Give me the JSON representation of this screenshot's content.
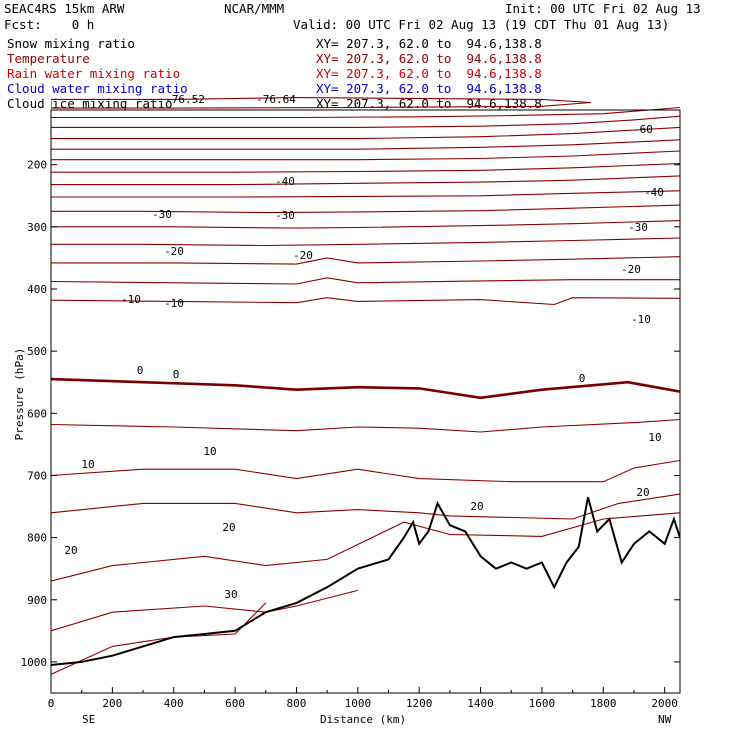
{
  "header": {
    "model": "SEAC4RS 15km ARW",
    "center": "NCAR/MMM",
    "init": "Init: 00 UTC Fri 02 Aug 13",
    "fcst": "Fcst:    0 h",
    "valid": "Valid: 00 UTC Fri 02 Aug 13 (19 CDT Thu 01 Aug 13)"
  },
  "fields": [
    {
      "name": "Snow mixing ratio",
      "color": "#000000",
      "xy": "XY= 207.3, 62.0 to  94.6,138.8"
    },
    {
      "name": "Temperature",
      "color": "#8b0000",
      "xy": "XY= 207.3, 62.0 to  94.6,138.8"
    },
    {
      "name": "Rain water mixing ratio",
      "color": "#cc0000",
      "xy": "XY= 207.3, 62.0 to  94.6,138.8"
    },
    {
      "name": "Cloud water mixing ratio",
      "color": "#0000cc",
      "xy": "XY= 207.3, 62.0 to  94.6,138.8"
    },
    {
      "name": "Cloud ice mixing ratio",
      "color": "#000000",
      "xy": "XY= 207.3, 62.0 to  94.6,138.8"
    }
  ],
  "axes": {
    "ylabel": "Pressure (hPa)",
    "xlabel": "Distance (km)",
    "left_end": "SE",
    "right_end": "NW"
  },
  "chart_data": {
    "type": "line",
    "title": "Temperature",
    "xlabel": "Distance (km)",
    "ylabel": "Pressure (hPa)",
    "xlim": [
      0,
      2050
    ],
    "ylim": [
      1050,
      112
    ],
    "x_ticks": [
      0,
      200,
      400,
      600,
      800,
      1000,
      1200,
      1400,
      1600,
      1800,
      2000
    ],
    "y_ticks": [
      200,
      300,
      400,
      500,
      600,
      700,
      800,
      900,
      1000
    ],
    "colors": {
      "contour": "#8b0000",
      "zero": "#7a0000",
      "terrain": "#000000"
    },
    "contours": [
      {
        "level": -76.52,
        "label": "-76.52",
        "points": [
          [
            0,
            95
          ],
          [
            400,
            95
          ],
          [
            800,
            92
          ],
          [
            1600,
            95
          ],
          [
            1760,
            100
          ],
          [
            1600,
            106
          ],
          [
            1000,
            108
          ],
          [
            400,
            109
          ],
          [
            0,
            109
          ]
        ]
      },
      {
        "level": -76.64,
        "label": "-76.64",
        "points": []
      },
      {
        "level": -70,
        "label": "",
        "points": [
          [
            0,
            124
          ],
          [
            400,
            124
          ],
          [
            800,
            124
          ],
          [
            1200,
            123
          ],
          [
            1500,
            121
          ],
          [
            1800,
            118
          ],
          [
            2050,
            108
          ]
        ]
      },
      {
        "level": -65,
        "label": "",
        "points": [
          [
            0,
            140
          ],
          [
            600,
            140
          ],
          [
            1000,
            140
          ],
          [
            1400,
            138
          ],
          [
            1700,
            134
          ],
          [
            1900,
            128
          ],
          [
            2050,
            122
          ]
        ]
      },
      {
        "level": -60,
        "label": "-60",
        "points": [
          [
            0,
            158
          ],
          [
            600,
            158
          ],
          [
            1000,
            158
          ],
          [
            1400,
            155
          ],
          [
            1700,
            150
          ],
          [
            2050,
            140
          ]
        ]
      },
      {
        "level": -55,
        "label": "",
        "points": [
          [
            0,
            175
          ],
          [
            600,
            175
          ],
          [
            1000,
            175
          ],
          [
            1400,
            172
          ],
          [
            1700,
            168
          ],
          [
            2050,
            160
          ]
        ]
      },
      {
        "level": -50,
        "label": "",
        "points": [
          [
            0,
            192
          ],
          [
            600,
            192
          ],
          [
            1000,
            192
          ],
          [
            1400,
            190
          ],
          [
            1700,
            186
          ],
          [
            2050,
            178
          ]
        ]
      },
      {
        "level": -45,
        "label": "",
        "points": [
          [
            0,
            212
          ],
          [
            600,
            212
          ],
          [
            1000,
            211
          ],
          [
            1400,
            209
          ],
          [
            1700,
            205
          ],
          [
            2050,
            198
          ]
        ]
      },
      {
        "level": -40,
        "label": "-40",
        "points": [
          [
            0,
            232
          ],
          [
            600,
            232
          ],
          [
            1000,
            230
          ],
          [
            1400,
            228
          ],
          [
            1700,
            225
          ],
          [
            2050,
            218
          ]
        ]
      },
      {
        "level": -35,
        "label": "",
        "points": [
          [
            0,
            252
          ],
          [
            600,
            252
          ],
          [
            1000,
            251
          ],
          [
            1400,
            250
          ],
          [
            1700,
            246
          ],
          [
            2050,
            242
          ]
        ]
      },
      {
        "level": -30,
        "label": "-30",
        "points": [
          [
            0,
            275
          ],
          [
            300,
            275
          ],
          [
            700,
            277
          ],
          [
            1000,
            276
          ],
          [
            1400,
            274
          ],
          [
            1700,
            270
          ],
          [
            2050,
            265
          ]
        ]
      },
      {
        "level": -25,
        "label": "",
        "points": [
          [
            0,
            300
          ],
          [
            400,
            300
          ],
          [
            800,
            302
          ],
          [
            1000,
            301
          ],
          [
            1400,
            298
          ],
          [
            1700,
            295
          ],
          [
            2050,
            290
          ]
        ]
      },
      {
        "level": -20,
        "label": "-20",
        "points": [
          [
            0,
            328
          ],
          [
            300,
            328
          ],
          [
            700,
            330
          ],
          [
            1000,
            328
          ],
          [
            1400,
            325
          ],
          [
            1700,
            322
          ],
          [
            2050,
            318
          ]
        ]
      },
      {
        "level": -15,
        "label": "",
        "points": [
          [
            0,
            358
          ],
          [
            400,
            358
          ],
          [
            800,
            360
          ],
          [
            900,
            350
          ],
          [
            1000,
            358
          ],
          [
            1400,
            355
          ],
          [
            1700,
            352
          ],
          [
            2050,
            348
          ]
        ]
      },
      {
        "level": -10,
        "label": "-10",
        "points": [
          [
            0,
            388
          ],
          [
            400,
            390
          ],
          [
            800,
            392
          ],
          [
            900,
            382
          ],
          [
            1000,
            390
          ],
          [
            1400,
            387
          ],
          [
            1700,
            385
          ],
          [
            2050,
            385
          ]
        ]
      },
      {
        "level": -5,
        "label": "",
        "points": [
          [
            0,
            418
          ],
          [
            400,
            420
          ],
          [
            800,
            422
          ],
          [
            900,
            414
          ],
          [
            1000,
            420
          ],
          [
            1400,
            417
          ],
          [
            1640,
            425
          ],
          [
            1700,
            414
          ],
          [
            2050,
            415
          ]
        ]
      },
      {
        "level": 0,
        "label": "0",
        "points": [
          [
            0,
            545
          ],
          [
            300,
            550
          ],
          [
            600,
            555
          ],
          [
            800,
            562
          ],
          [
            1000,
            558
          ],
          [
            1200,
            560
          ],
          [
            1400,
            575
          ],
          [
            1600,
            562
          ],
          [
            1880,
            550
          ],
          [
            2050,
            565
          ]
        ]
      },
      {
        "level": 5,
        "label": "",
        "points": [
          [
            0,
            618
          ],
          [
            400,
            622
          ],
          [
            800,
            628
          ],
          [
            1000,
            622
          ],
          [
            1200,
            624
          ],
          [
            1400,
            630
          ],
          [
            1600,
            622
          ],
          [
            1900,
            615
          ],
          [
            2050,
            610
          ]
        ]
      },
      {
        "level": 10,
        "label": "10",
        "points": [
          [
            0,
            700
          ],
          [
            300,
            690
          ],
          [
            600,
            690
          ],
          [
            800,
            705
          ],
          [
            1000,
            690
          ],
          [
            1200,
            705
          ],
          [
            1500,
            710
          ],
          [
            1800,
            710
          ],
          [
            1900,
            688
          ],
          [
            2050,
            676
          ]
        ]
      },
      {
        "level": 15,
        "label": "",
        "points": [
          [
            0,
            760
          ],
          [
            300,
            745
          ],
          [
            600,
            745
          ],
          [
            800,
            760
          ],
          [
            1000,
            755
          ],
          [
            1200,
            760
          ],
          [
            1300,
            765
          ],
          [
            1700,
            770
          ],
          [
            1850,
            745
          ],
          [
            2050,
            730
          ]
        ]
      },
      {
        "level": 20,
        "label": "20",
        "points": [
          [
            0,
            870
          ],
          [
            200,
            845
          ],
          [
            500,
            830
          ],
          [
            700,
            845
          ],
          [
            900,
            835
          ],
          [
            1150,
            775
          ],
          [
            1300,
            795
          ],
          [
            1600,
            798
          ],
          [
            1800,
            770
          ],
          [
            2050,
            760
          ]
        ]
      },
      {
        "level": 25,
        "label": "",
        "points": [
          [
            0,
            950
          ],
          [
            200,
            920
          ],
          [
            500,
            910
          ],
          [
            700,
            920
          ],
          [
            800,
            910
          ],
          [
            1000,
            885
          ]
        ]
      },
      {
        "level": 30,
        "label": "30",
        "points": [
          [
            0,
            1020
          ],
          [
            200,
            975
          ],
          [
            400,
            960
          ],
          [
            600,
            955
          ],
          [
            700,
            905
          ]
        ]
      }
    ],
    "terrain": [
      [
        0,
        1005
      ],
      [
        100,
        1000
      ],
      [
        200,
        990
      ],
      [
        300,
        975
      ],
      [
        400,
        960
      ],
      [
        500,
        955
      ],
      [
        600,
        950
      ],
      [
        700,
        920
      ],
      [
        800,
        905
      ],
      [
        900,
        880
      ],
      [
        1000,
        850
      ],
      [
        1100,
        835
      ],
      [
        1150,
        800
      ],
      [
        1180,
        775
      ],
      [
        1200,
        810
      ],
      [
        1230,
        790
      ],
      [
        1260,
        745
      ],
      [
        1300,
        780
      ],
      [
        1350,
        790
      ],
      [
        1400,
        830
      ],
      [
        1450,
        850
      ],
      [
        1500,
        840
      ],
      [
        1550,
        850
      ],
      [
        1600,
        840
      ],
      [
        1640,
        880
      ],
      [
        1680,
        840
      ],
      [
        1720,
        815
      ],
      [
        1750,
        735
      ],
      [
        1780,
        790
      ],
      [
        1820,
        770
      ],
      [
        1860,
        840
      ],
      [
        1900,
        810
      ],
      [
        1950,
        790
      ],
      [
        2000,
        810
      ],
      [
        2030,
        770
      ],
      [
        2050,
        800
      ]
    ]
  }
}
